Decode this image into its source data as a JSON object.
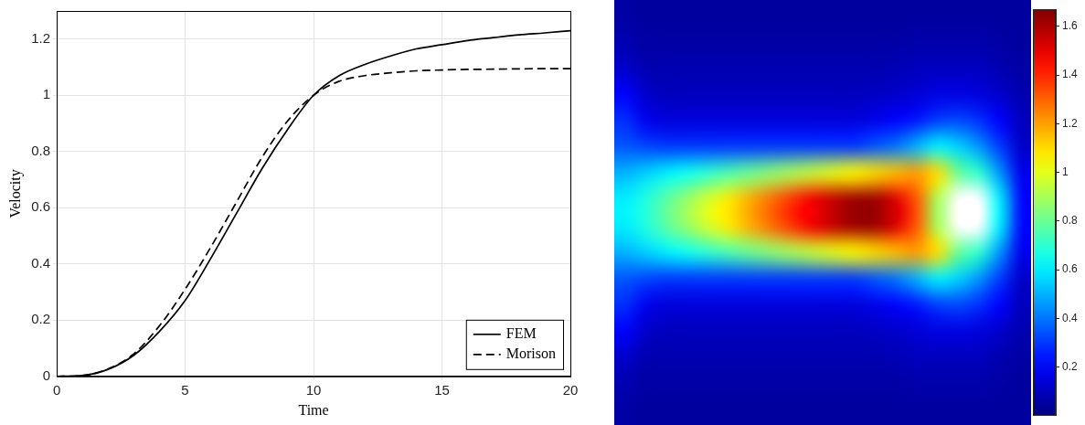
{
  "chart_data": [
    {
      "type": "line",
      "x_label": "Time",
      "y_label": "Velocity",
      "x": [
        0,
        1,
        2,
        3,
        4,
        5,
        6,
        7,
        8,
        9,
        10,
        11,
        12,
        13,
        14,
        15,
        16,
        17,
        18,
        19,
        20
      ],
      "series": [
        {
          "name": "FEM",
          "color": "#000000",
          "line_style": "solid",
          "values": [
            0,
            0.003,
            0.025,
            0.075,
            0.16,
            0.27,
            0.42,
            0.58,
            0.74,
            0.88,
            1.0,
            1.07,
            1.11,
            1.14,
            1.165,
            1.18,
            1.195,
            1.205,
            1.215,
            1.222,
            1.23
          ]
        },
        {
          "name": "Morison",
          "color": "#000000",
          "line_style": "dashed",
          "values": [
            0,
            0.003,
            0.027,
            0.08,
            0.18,
            0.31,
            0.46,
            0.62,
            0.78,
            0.91,
            1.0,
            1.05,
            1.07,
            1.08,
            1.087,
            1.09,
            1.092,
            1.093,
            1.094,
            1.095,
            1.095
          ]
        }
      ],
      "xlim": [
        0,
        20
      ],
      "xticks": [
        0,
        5,
        10,
        15,
        20
      ],
      "ylim": [
        0,
        1.3
      ],
      "yticks": [
        0,
        0.2,
        0.4,
        0.6,
        0.8,
        1,
        1.2
      ],
      "grid": true,
      "legend": "lower right"
    },
    {
      "type": "heatmap",
      "tick_labels": false,
      "cells": [
        [
          0.06,
          0.05,
          0.05,
          0.05,
          0.05,
          0.05,
          0.05,
          0.05,
          0.05,
          0.05,
          0.05,
          0.05,
          0.05,
          0.05,
          0.05,
          0.05,
          0.05,
          0.05,
          0.05,
          0.05
        ],
        [
          0.08,
          0.06,
          0.06,
          0.06,
          0.06,
          0.06,
          0.06,
          0.06,
          0.06,
          0.06,
          0.06,
          0.06,
          0.06,
          0.06,
          0.07,
          0.07,
          0.07,
          0.07,
          0.06,
          0.05
        ],
        [
          0.12,
          0.08,
          0.08,
          0.08,
          0.08,
          0.08,
          0.08,
          0.08,
          0.08,
          0.08,
          0.08,
          0.08,
          0.08,
          0.09,
          0.1,
          0.1,
          0.1,
          0.1,
          0.08,
          0.06
        ],
        [
          0.2,
          0.12,
          0.1,
          0.1,
          0.1,
          0.1,
          0.1,
          0.1,
          0.1,
          0.1,
          0.1,
          0.1,
          0.11,
          0.12,
          0.14,
          0.16,
          0.16,
          0.15,
          0.12,
          0.08
        ],
        [
          0.28,
          0.18,
          0.15,
          0.15,
          0.15,
          0.15,
          0.15,
          0.15,
          0.15,
          0.15,
          0.15,
          0.15,
          0.17,
          0.2,
          0.24,
          0.3,
          0.32,
          0.28,
          0.2,
          0.1
        ],
        [
          0.35,
          0.32,
          0.3,
          0.3,
          0.3,
          0.3,
          0.3,
          0.3,
          0.3,
          0.3,
          0.3,
          0.3,
          0.35,
          0.4,
          0.5,
          0.6,
          0.55,
          0.45,
          0.3,
          0.12
        ],
        [
          0.5,
          0.55,
          0.6,
          0.65,
          0.7,
          0.75,
          0.8,
          0.85,
          0.9,
          0.95,
          1.0,
          1.05,
          1.1,
          1.15,
          1.2,
          1.1,
          0.8,
          0.7,
          0.45,
          0.18
        ],
        [
          0.6,
          0.68,
          0.78,
          0.88,
          0.98,
          1.08,
          1.18,
          1.28,
          1.38,
          1.48,
          1.56,
          1.62,
          1.62,
          1.52,
          1.32,
          0.9,
          null,
          null,
          0.6,
          0.22
        ],
        [
          0.6,
          0.68,
          0.78,
          0.88,
          0.98,
          1.08,
          1.18,
          1.28,
          1.38,
          1.48,
          1.56,
          1.62,
          1.62,
          1.52,
          1.32,
          0.9,
          null,
          null,
          0.6,
          0.22
        ],
        [
          0.5,
          0.55,
          0.6,
          0.65,
          0.7,
          0.75,
          0.8,
          0.85,
          0.9,
          0.95,
          1.0,
          1.05,
          1.1,
          1.15,
          1.2,
          1.1,
          0.8,
          0.7,
          0.45,
          0.18
        ],
        [
          0.35,
          0.32,
          0.3,
          0.3,
          0.3,
          0.3,
          0.3,
          0.3,
          0.3,
          0.3,
          0.3,
          0.3,
          0.35,
          0.4,
          0.5,
          0.6,
          0.55,
          0.45,
          0.3,
          0.12
        ],
        [
          0.28,
          0.18,
          0.15,
          0.15,
          0.15,
          0.15,
          0.15,
          0.15,
          0.15,
          0.15,
          0.15,
          0.15,
          0.17,
          0.2,
          0.24,
          0.3,
          0.32,
          0.28,
          0.2,
          0.1
        ],
        [
          0.2,
          0.12,
          0.1,
          0.1,
          0.1,
          0.1,
          0.1,
          0.1,
          0.1,
          0.1,
          0.1,
          0.1,
          0.11,
          0.12,
          0.14,
          0.16,
          0.16,
          0.15,
          0.12,
          0.08
        ],
        [
          0.12,
          0.08,
          0.08,
          0.08,
          0.08,
          0.08,
          0.08,
          0.08,
          0.08,
          0.08,
          0.08,
          0.08,
          0.08,
          0.09,
          0.1,
          0.1,
          0.1,
          0.1,
          0.08,
          0.06
        ],
        [
          0.08,
          0.06,
          0.06,
          0.06,
          0.06,
          0.06,
          0.06,
          0.06,
          0.06,
          0.06,
          0.06,
          0.06,
          0.06,
          0.06,
          0.07,
          0.07,
          0.07,
          0.07,
          0.06,
          0.05
        ],
        [
          0.06,
          0.05,
          0.05,
          0.05,
          0.05,
          0.05,
          0.05,
          0.05,
          0.05,
          0.05,
          0.05,
          0.05,
          0.05,
          0.05,
          0.05,
          0.05,
          0.05,
          0.05,
          0.05,
          0.05
        ]
      ],
      "colorbar": {
        "range": [
          0,
          1.67
        ],
        "ticks": [
          0.2,
          0.4,
          0.6,
          0.8,
          1,
          1.2,
          1.4,
          1.6
        ]
      }
    }
  ]
}
